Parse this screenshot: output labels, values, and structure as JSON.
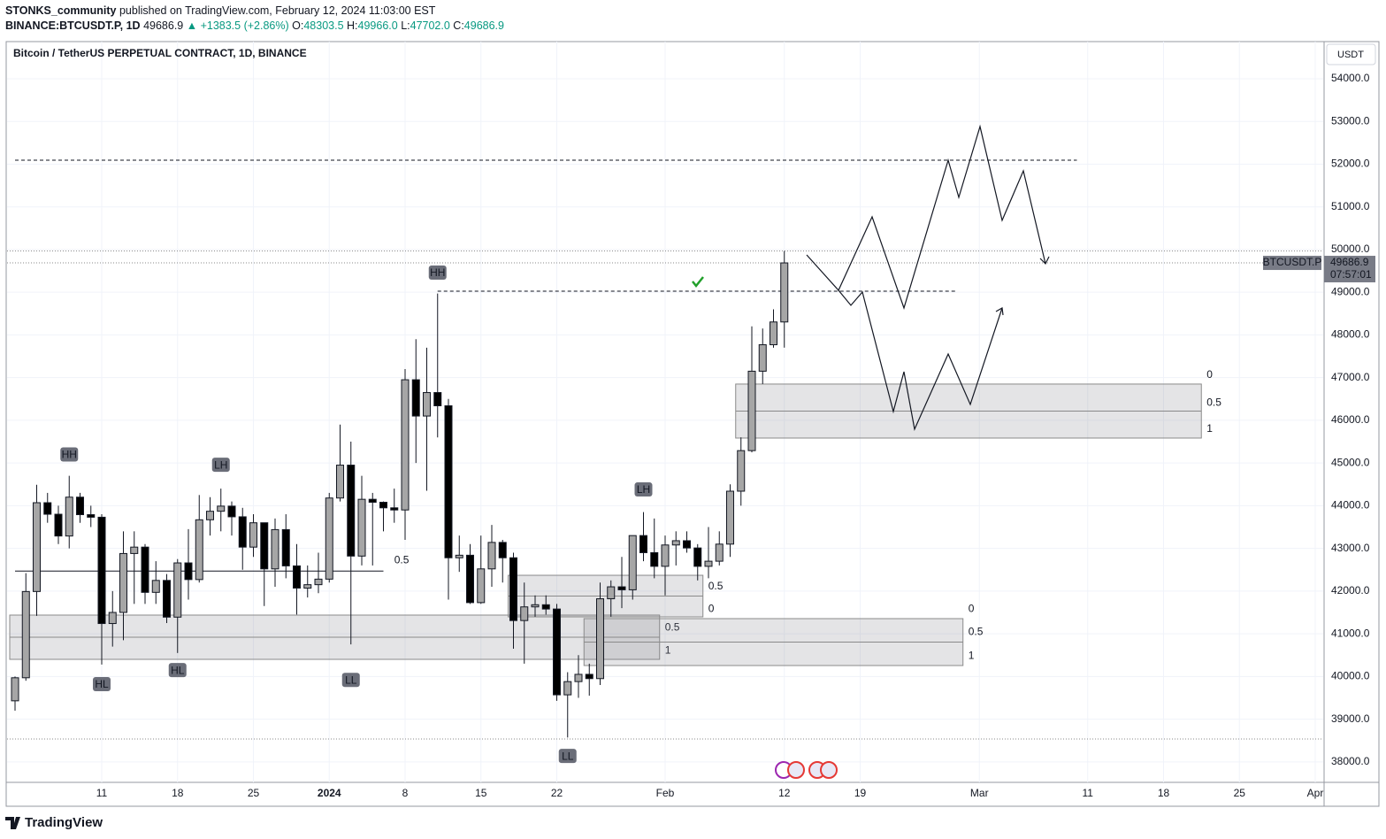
{
  "header": {
    "author": "STONKS_community",
    "published": "published on TradingView.com, February 12, 2024 11:03:00 EST",
    "symbol": "BINANCE:BTCUSDT.P, 1D",
    "last": "49686.9",
    "change": "▲ +1383.5 (+2.86%)",
    "ohlc": [
      {
        "key": "O:",
        "value": "48303.5"
      },
      {
        "key": "H:",
        "value": "49966.0"
      },
      {
        "key": "L:",
        "value": "47702.0"
      },
      {
        "key": "C:",
        "value": "49686.9"
      }
    ],
    "brand": "TradingView"
  },
  "chart_data": {
    "type": "candlestick",
    "title": "Bitcoin / TetherUS PERPETUAL CONTRACT, 1D, BINANCE",
    "categories": [
      null,
      null,
      null,
      null,
      null,
      null,
      null,
      null,
      "11",
      null,
      null,
      null,
      null,
      null,
      null,
      "18",
      null,
      null,
      null,
      null,
      null,
      null,
      "25",
      null,
      null,
      null,
      null,
      null,
      null,
      "2024",
      null,
      null,
      null,
      null,
      null,
      null,
      "8",
      null,
      null,
      null,
      null,
      null,
      null,
      "15",
      null,
      null,
      null,
      null,
      null,
      null,
      "22",
      null,
      null,
      null,
      null,
      null,
      null,
      null,
      null,
      null,
      "Feb",
      null,
      null,
      null,
      null,
      null,
      null,
      null,
      null,
      null,
      null,
      "12",
      null,
      null,
      null,
      null,
      null,
      null,
      "19",
      null,
      null,
      null,
      null,
      null,
      null,
      null,
      null,
      null,
      null,
      "Mar",
      null,
      null,
      null,
      null,
      null,
      null,
      null,
      null,
      null,
      "11",
      null,
      null,
      null,
      null,
      null,
      null,
      "18",
      null,
      null,
      null,
      null,
      null,
      null,
      "25",
      null,
      null,
      null,
      null,
      null,
      null,
      "Apr"
    ],
    "open": [
      39430,
      39970,
      41990,
      44070,
      43800,
      43290,
      44200,
      43790,
      43730,
      41240,
      41500,
      42880,
      43030,
      41970,
      42250,
      41390,
      42660,
      42270,
      43670,
      43870,
      43990,
      43740,
      43030,
      43600,
      42520,
      43440,
      42590,
      42070,
      42150,
      42280,
      44180,
      44950,
      42820,
      44150,
      44080,
      43950,
      43900,
      46950,
      46100,
      46650,
      46340,
      42780,
      42840,
      41730,
      42520,
      43140,
      42780,
      41310,
      41630,
      41680,
      41580,
      39570,
      39880,
      40050,
      39950,
      41820,
      42100,
      42030,
      43300,
      42900,
      42580,
      43080,
      43180,
      43010,
      42580,
      42700,
      43100,
      44340,
      45290,
      47150,
      47770,
      48303.5,
      null,
      null,
      null,
      null,
      null,
      null,
      null,
      null,
      null,
      null,
      null,
      null,
      null,
      null,
      null,
      null,
      null,
      null,
      null,
      null,
      null,
      null,
      null,
      null,
      null,
      null,
      null,
      null,
      null,
      null,
      null,
      null,
      null,
      null,
      null,
      null,
      null,
      null,
      null,
      null,
      null,
      null,
      null,
      null,
      null,
      null,
      null,
      null,
      null
    ],
    "high": [
      40000,
      42420,
      44490,
      44300,
      44000,
      44700,
      44300,
      44000,
      43800,
      42000,
      43400,
      43400,
      43100,
      42700,
      42400,
      42750,
      43450,
      44250,
      44200,
      44400,
      44100,
      43950,
      43800,
      43600,
      43700,
      43800,
      43100,
      42600,
      42900,
      44300,
      45900,
      45500,
      44700,
      44300,
      44100,
      44400,
      47200,
      47900,
      47700,
      48970,
      46500,
      43300,
      43100,
      43300,
      43550,
      43200,
      42900,
      42200,
      41900,
      41900,
      41700,
      40100,
      40500,
      40300,
      42200,
      42250,
      42800,
      43300,
      43850,
      43700,
      43300,
      43400,
      43400,
      43100,
      43500,
      43400,
      44500,
      45600,
      48200,
      48150,
      48600,
      49966,
      null,
      null,
      null,
      null,
      null,
      null,
      null,
      null,
      null,
      null,
      null,
      null,
      null,
      null,
      null,
      null,
      null,
      null,
      null,
      null,
      null,
      null,
      null,
      null,
      null,
      null,
      null,
      null,
      null,
      null,
      null,
      null,
      null,
      null,
      null,
      null,
      null,
      null,
      null,
      null,
      null,
      null,
      null,
      null,
      null,
      null,
      null,
      null,
      null
    ],
    "low": [
      39200,
      39900,
      41420,
      43600,
      43100,
      43000,
      43600,
      43500,
      40280,
      40700,
      40850,
      41700,
      41700,
      41700,
      41250,
      40550,
      41800,
      42200,
      43300,
      43400,
      43300,
      42500,
      42800,
      41650,
      42100,
      42300,
      41450,
      41850,
      41950,
      42200,
      44100,
      40750,
      42600,
      42600,
      43400,
      43600,
      43200,
      45000,
      44350,
      45600,
      41800,
      42450,
      41700,
      41700,
      42100,
      42200,
      40650,
      40300,
      41400,
      41450,
      39430,
      38570,
      39500,
      39550,
      39800,
      41400,
      41600,
      41800,
      42700,
      42300,
      41900,
      42600,
      42900,
      42250,
      42300,
      42600,
      42800,
      44000,
      45250,
      46850,
      47700,
      47702,
      null,
      null,
      null,
      null,
      null,
      null,
      null,
      null,
      null,
      null,
      null,
      null,
      null,
      null,
      null,
      null,
      null,
      null,
      null,
      null,
      null,
      null,
      null,
      null,
      null,
      null,
      null,
      null,
      null,
      null,
      null,
      null,
      null,
      null,
      null,
      null,
      null,
      null,
      null,
      null,
      null,
      null,
      null,
      null,
      null,
      null,
      null,
      null,
      null
    ],
    "close": [
      39970,
      41990,
      44070,
      43800,
      43290,
      44200,
      43790,
      43730,
      41240,
      41500,
      42880,
      43030,
      41970,
      42250,
      41390,
      42660,
      42270,
      43670,
      43870,
      43990,
      43740,
      43030,
      43600,
      42520,
      43440,
      42590,
      42070,
      42150,
      42280,
      44180,
      44950,
      42820,
      44150,
      44080,
      43950,
      43900,
      46950,
      46100,
      46650,
      46340,
      42780,
      42840,
      41730,
      42520,
      43140,
      42780,
      41310,
      41630,
      41680,
      41580,
      39570,
      39880,
      40050,
      39950,
      41820,
      42100,
      42030,
      43300,
      42900,
      42580,
      43080,
      43180,
      43010,
      42580,
      42700,
      43100,
      44340,
      45290,
      47150,
      47770,
      48303.5,
      49686.9,
      null,
      null,
      null,
      null,
      null,
      null,
      null,
      null,
      null,
      null,
      null,
      null,
      null,
      null,
      null,
      null,
      null,
      null,
      null,
      null,
      null,
      null,
      null,
      null,
      null,
      null,
      null,
      null,
      null,
      null,
      null,
      null,
      null,
      null,
      null,
      null,
      null,
      null,
      null,
      null,
      null,
      null,
      null,
      null,
      null,
      null,
      null,
      null,
      null
    ],
    "up_color": "#a6a6a6",
    "down_color": "#000000",
    "ylim": [
      37520,
      54870
    ],
    "yticks": [
      {
        "value": 38000,
        "label": "38000.0"
      },
      {
        "value": 39000,
        "label": "39000.0"
      },
      {
        "value": 40000,
        "label": "40000.0"
      },
      {
        "value": 41000,
        "label": "41000.0"
      },
      {
        "value": 42000,
        "label": "42000.0"
      },
      {
        "value": 43000,
        "label": "43000.0"
      },
      {
        "value": 44000,
        "label": "44000.0"
      },
      {
        "value": 45000,
        "label": "45000.0"
      },
      {
        "value": 46000,
        "label": "46000.0"
      },
      {
        "value": 47000,
        "label": "47000.0"
      },
      {
        "value": 48000,
        "label": "48000.0"
      },
      {
        "value": 49000,
        "label": "49000.0"
      },
      {
        "value": 50000,
        "label": "50000.0"
      },
      {
        "value": 51000,
        "label": "51000.0"
      },
      {
        "value": 52000,
        "label": "52000.0"
      },
      {
        "value": 53000,
        "label": "53000.0"
      },
      {
        "value": 54000,
        "label": "54000.0"
      }
    ],
    "grid": true,
    "currency": "USDT",
    "price_label": {
      "symbol": "BTCUSDT.P",
      "value": 49686.9,
      "countdown": "07:57:01"
    },
    "pivots": [
      {
        "text": "HH",
        "x": 5,
        "price": 45200
      },
      {
        "text": "HL",
        "x": 8,
        "price": 39820
      },
      {
        "text": "HL",
        "x": 15,
        "price": 40150
      },
      {
        "text": "LH",
        "x": 19,
        "price": 44960
      },
      {
        "text": "LL",
        "x": 31,
        "price": 39920
      },
      {
        "text": "HH",
        "x": 39,
        "price": 49460
      },
      {
        "text": "LL",
        "x": 51,
        "price": 38140
      },
      {
        "text": "LH",
        "x": 58,
        "price": 44380
      }
    ],
    "notes": [
      {
        "text": "0.5",
        "x": 35,
        "price": 42720
      }
    ],
    "zones": [
      {
        "from": 0,
        "to": 59,
        "top": 41438,
        "bottom": 40401,
        "labels": [
          {
            "text": "0.5",
            "price": 41140
          },
          {
            "text": "1",
            "price": 40600
          }
        ]
      },
      {
        "from": 46,
        "to": 63,
        "top": 42370,
        "bottom": 41396,
        "labels": [
          {
            "text": "0.5",
            "price": 42100
          },
          {
            "text": "0",
            "price": 41580
          }
        ]
      },
      {
        "from": 53,
        "to": 87,
        "top": 41355,
        "bottom": 40256,
        "labels": [
          {
            "text": "0",
            "price": 41580
          },
          {
            "text": "0.5",
            "price": 41040
          },
          {
            "text": "1",
            "price": 40480
          }
        ]
      },
      {
        "from": 67,
        "to": 109,
        "top": 46849,
        "bottom": 45584,
        "labels": [
          {
            "text": "0",
            "price": 47055
          },
          {
            "text": "0.5",
            "price": 46410
          },
          {
            "text": "1",
            "price": 45790
          }
        ]
      }
    ],
    "hlines": [
      {
        "price": 52093,
        "from": 0,
        "to": 98,
        "style": "dashed"
      },
      {
        "price": 49025,
        "from": 39,
        "to": 87,
        "style": "dashed"
      },
      {
        "price": 42470,
        "from": 0,
        "to": 34,
        "style": "solid"
      },
      {
        "price": 49966,
        "style": "dotted"
      },
      {
        "price": 49686.9,
        "style": "dotted"
      },
      {
        "price": 38535,
        "style": "dotted"
      }
    ]
  }
}
